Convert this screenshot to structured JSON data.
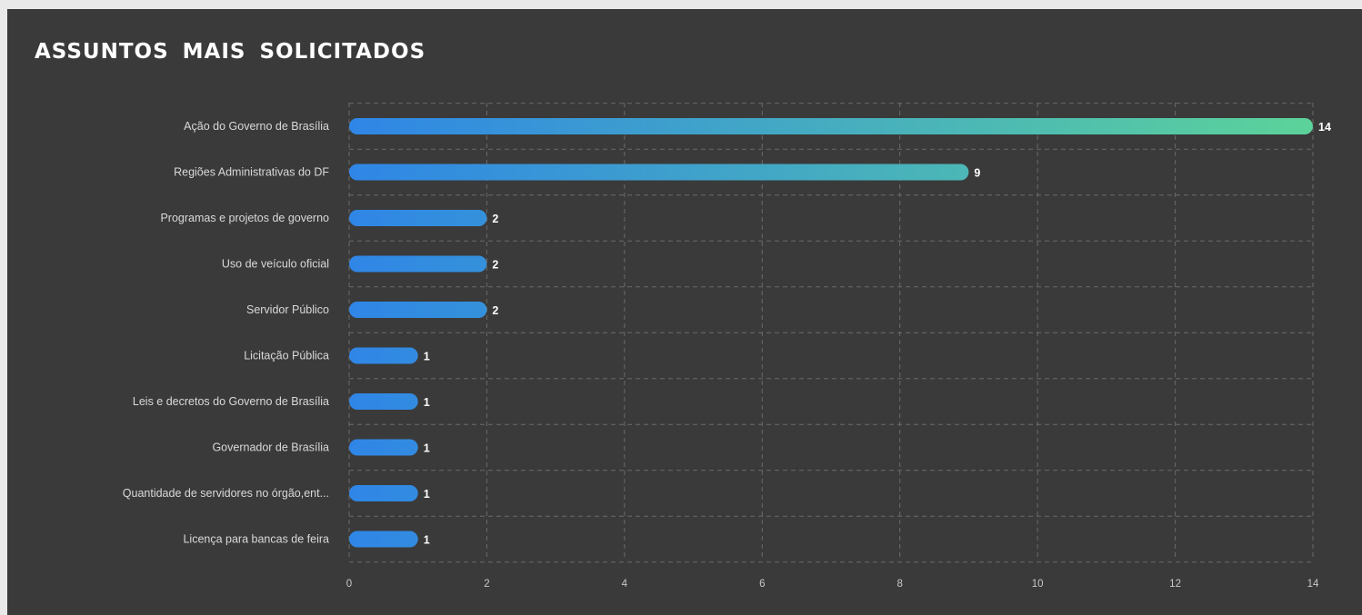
{
  "chart_data": {
    "type": "bar",
    "orientation": "horizontal",
    "title": "ASSUNTOS MAIS SOLICITADOS",
    "categories": [
      "Ação do Governo de Brasília",
      "Regiões Administrativas do DF",
      "Programas e projetos de governo",
      "Uso de veículo oficial",
      "Servidor Público",
      "Licitação Pública",
      "Leis e decretos do Governo de Brasília",
      "Governador de Brasília",
      "Quantidade de servidores no órgão,ent...",
      "Licença para bancas de feira"
    ],
    "values": [
      14,
      9,
      2,
      2,
      2,
      1,
      1,
      1,
      1,
      1
    ],
    "xlim": [
      0,
      14
    ],
    "xticks": [
      "0",
      "2",
      "4",
      "6",
      "8",
      "10",
      "12",
      "14"
    ],
    "grid": true,
    "colors": {
      "panel_bg": "#3a3a3a",
      "bar_start": "#2f86e6",
      "bar_end": "#5cd39a",
      "grid": "#6a6a6a",
      "text": "#d9d9d9"
    }
  }
}
